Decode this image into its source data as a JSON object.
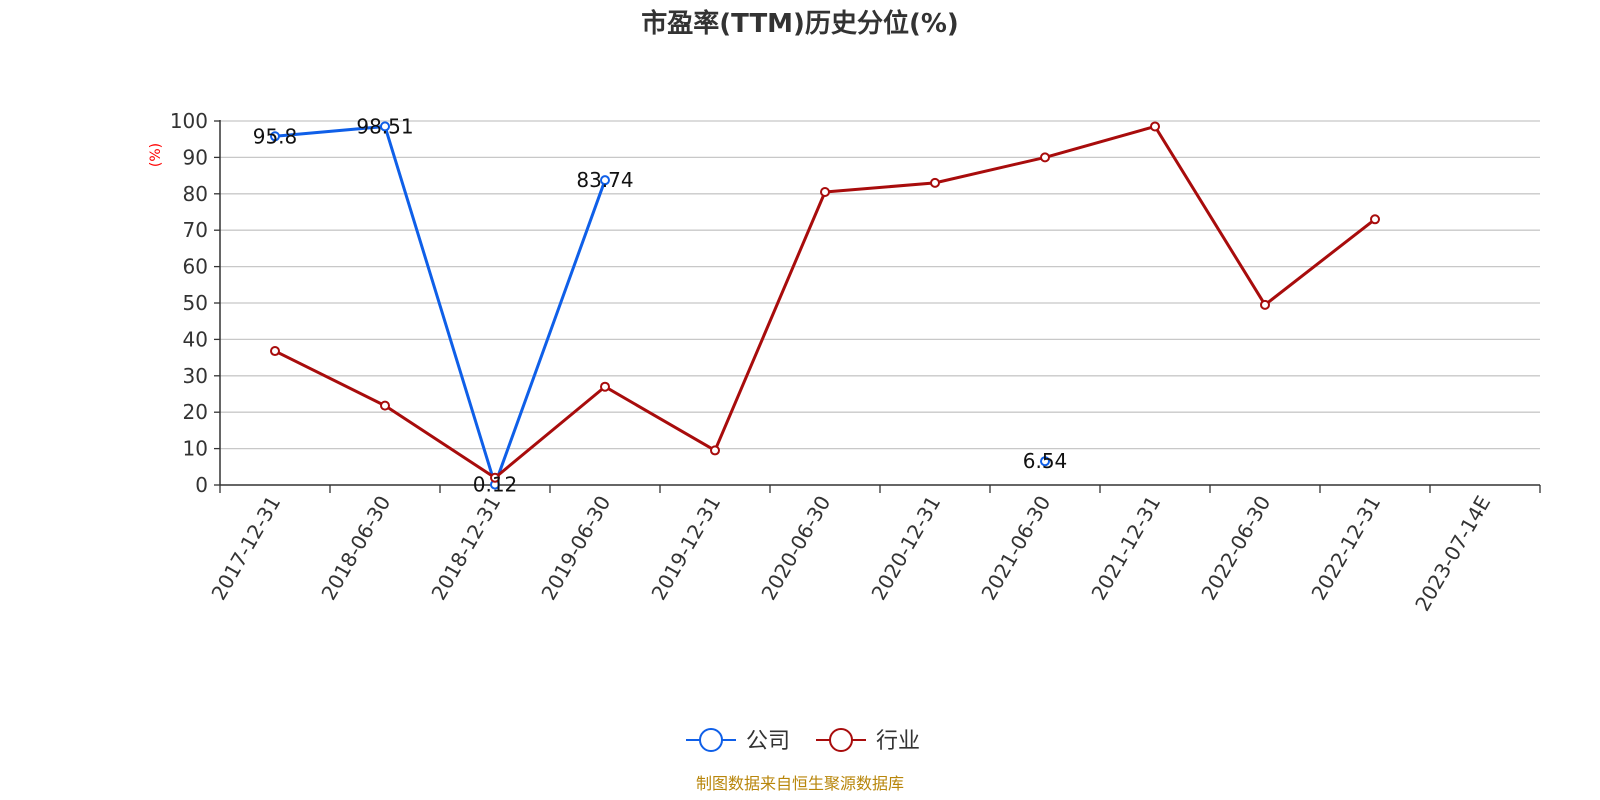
{
  "chart_data": {
    "type": "line",
    "title": "市盈率(TTM)历史分位(%)",
    "ylabel": "(%)",
    "xlabel": "",
    "ylim": [
      0,
      100
    ],
    "yticks": [
      0,
      10,
      20,
      30,
      40,
      50,
      60,
      70,
      80,
      90,
      100
    ],
    "categories": [
      "2017-12-31",
      "2018-06-30",
      "2018-12-31",
      "2019-06-30",
      "2019-12-31",
      "2020-06-30",
      "2020-12-31",
      "2021-06-30",
      "2021-12-31",
      "2022-06-30",
      "2022-12-31",
      "2023-07-14E"
    ],
    "grid": true,
    "legend_position": "bottom-center",
    "series": [
      {
        "name": "公司",
        "color": "#0f5fe8",
        "values": [
          95.8,
          98.51,
          0.12,
          83.74,
          null,
          null,
          null,
          6.54,
          null,
          null,
          null,
          null
        ],
        "labels": [
          "95.8",
          "98.51",
          "0.12",
          "83.74",
          null,
          null,
          null,
          "6.54",
          null,
          null,
          null,
          null
        ]
      },
      {
        "name": "行业",
        "color": "#a80c0c",
        "values": [
          36.8,
          21.8,
          2.0,
          27.0,
          9.5,
          80.5,
          83.0,
          90.0,
          98.5,
          49.5,
          73.0,
          null
        ],
        "labels": []
      }
    ]
  },
  "source": "制图数据来自恒生聚源数据库"
}
